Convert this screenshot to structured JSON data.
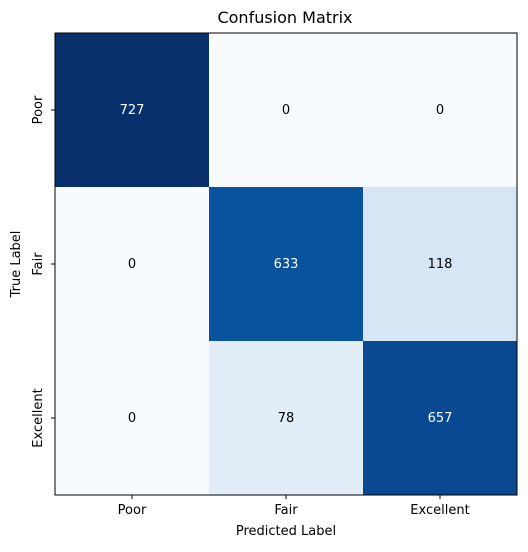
{
  "chart_data": {
    "type": "heatmap",
    "title": "Confusion Matrix",
    "xlabel": "Predicted Label",
    "ylabel": "True Label",
    "x_categories": [
      "Poor",
      "Fair",
      "Excellent"
    ],
    "y_categories": [
      "Poor",
      "Fair",
      "Excellent"
    ],
    "values": [
      [
        727,
        0,
        0
      ],
      [
        0,
        633,
        118
      ],
      [
        0,
        78,
        657
      ]
    ],
    "colormap": "Blues",
    "vmin": 0,
    "vmax": 727,
    "grid": false,
    "colorbar": false
  }
}
